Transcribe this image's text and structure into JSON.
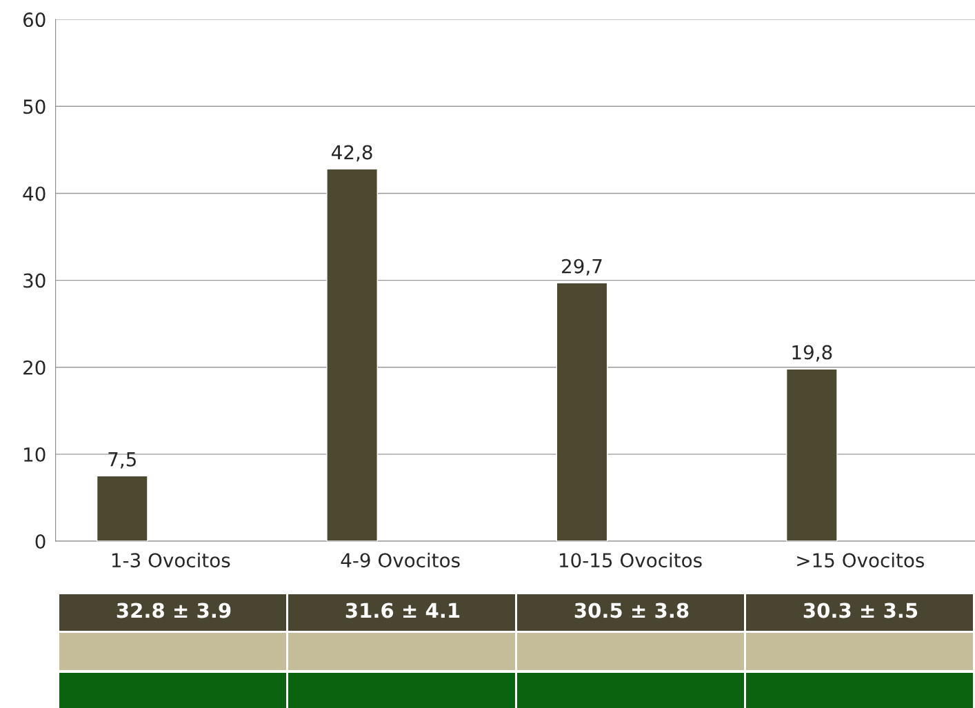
{
  "chart_data": {
    "type": "bar",
    "categories": [
      "1-3 Ovocitos",
      "4-9 Ovocitos",
      "10-15 Ovocitos",
      ">15 Ovocitos"
    ],
    "values": [
      7.5,
      42.8,
      29.7,
      19.8
    ],
    "value_labels": [
      "7,5",
      "42,8",
      "29,7",
      "19,8"
    ],
    "color": "#4d4830",
    "ylim": [
      0,
      60
    ],
    "yticks": [
      0,
      10,
      20,
      30,
      40,
      50,
      60
    ],
    "grid": "y",
    "legend": false,
    "annotations": [
      "32.8 ± 3.9",
      "31.6 ± 4.1",
      "30.5 ± 3.8",
      "30.3 ± 3.5"
    ]
  }
}
